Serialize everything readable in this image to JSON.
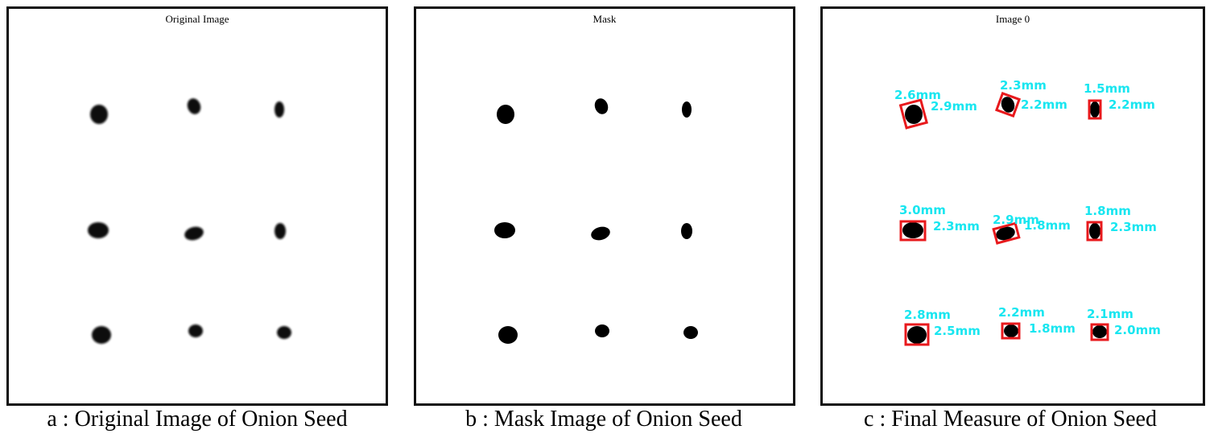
{
  "panels": [
    {
      "title": "Original Image",
      "caption": "a : Original Image of Onion Seed"
    },
    {
      "title": "Mask",
      "caption": "b : Mask Image of Onion Seed"
    },
    {
      "title": "Image 0",
      "caption": "c : Final Measure of Onion Seed"
    }
  ],
  "measurements": [
    {
      "w": "2.6mm",
      "h": "2.9mm"
    },
    {
      "w": "2.3mm",
      "h": "2.2mm"
    },
    {
      "w": "1.5mm",
      "h": "2.2mm"
    },
    {
      "w": "3.0mm",
      "h": "2.3mm"
    },
    {
      "w": "2.9mm",
      "h": "1.8mm"
    },
    {
      "w": "1.8mm",
      "h": "2.3mm"
    },
    {
      "w": "2.8mm",
      "h": "2.5mm"
    },
    {
      "w": "2.2mm",
      "h": "1.8mm"
    },
    {
      "w": "2.1mm",
      "h": "2.0mm"
    }
  ],
  "colors": {
    "box": "#e8191c",
    "label": "#19e6f0",
    "seed": "#0a0a0a"
  }
}
